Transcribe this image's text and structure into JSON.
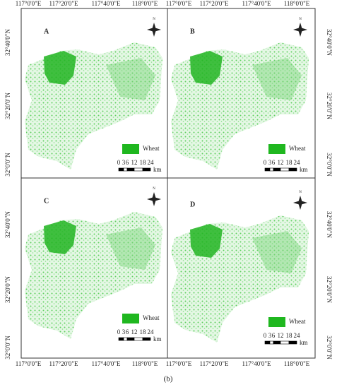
{
  "top_labels": [
    "117°0'0\"E",
    "117°20'0\"E",
    "117°40'0\"E",
    "118°0'0\"E",
    "117°0'0\"E",
    "117°20'0\"E",
    "117°40'0\"E",
    "118°0'0\"E"
  ],
  "bottom_labels": [
    "117°0'0\"E",
    "117°20'0\"E",
    "117°40'0\"E",
    "118°0'0\"E",
    "117°0'0\"E",
    "117°20'0\"E",
    "117°40'0\"E",
    "118°0'0\"E"
  ],
  "left_labels": [
    "32°40'0\"N",
    "32°20'0\"N",
    "32°0'0\"N",
    "32°40'0\"N",
    "32°20'0\"N",
    "32°0'0\"N"
  ],
  "right_labels": [
    "32°40'0\"N",
    "32°20'0\"N",
    "32°0'0\"N",
    "32°40'0\"N",
    "32°20'0\"N",
    "32°0'0\"N"
  ],
  "panels": [
    {
      "label": "A",
      "north": "N",
      "legend": "Wheat",
      "scale_ticks": [
        0,
        3,
        6,
        12,
        18,
        24
      ],
      "scale_unit": "km"
    },
    {
      "label": "B",
      "north": "N",
      "legend": "Wheat",
      "scale_ticks": [
        0,
        3,
        6,
        12,
        18,
        24
      ],
      "scale_unit": "km"
    },
    {
      "label": "C",
      "north": "N",
      "legend": "Wheat",
      "scale_ticks": [
        0,
        3,
        6,
        12,
        18,
        24
      ],
      "scale_unit": "km"
    },
    {
      "label": "D",
      "north": "N",
      "legend": "Wheat",
      "scale_ticks": [
        0,
        3,
        6,
        12,
        18,
        24
      ],
      "scale_unit": "km"
    }
  ],
  "caption": "(b)"
}
